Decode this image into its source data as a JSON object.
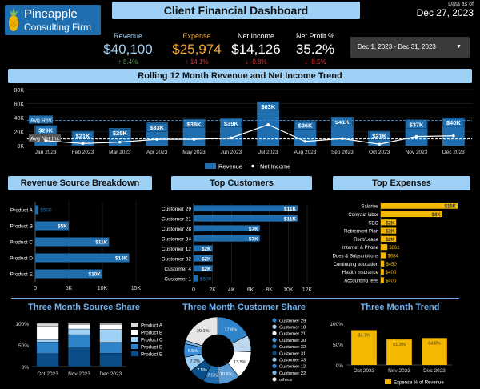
{
  "header": {
    "logo_line1": "Pineapple",
    "logo_line2": "Consulting Firm",
    "title": "Client Financial Dashboard",
    "as_of_label": "Data as of",
    "as_of_date": "Dec 27, 2023",
    "date_range": "Dec 1, 2023 - Dec 31, 2023",
    "dropdown_glyph": "▼"
  },
  "kpis": [
    {
      "label": "Revenue",
      "value": "$40,100",
      "change": "↑ 8.4%",
      "label_color": "#9fd0f5",
      "value_color": "#9fd0f5",
      "change_color": "#4caf50"
    },
    {
      "label": "Expense",
      "value": "$25,974",
      "change": "↑ 14.1%",
      "label_color": "#f5a623",
      "value_color": "#f5a623",
      "change_color": "#e53935"
    },
    {
      "label": "Net Income",
      "value": "$14,126",
      "change": "↓ -0.8%",
      "label_color": "#ffffff",
      "value_color": "#ffffff",
      "change_color": "#e53935"
    },
    {
      "label": "Net Profit %",
      "value": "35.2%",
      "change": "↓ -8.5%",
      "label_color": "#ffffff",
      "value_color": "#ffffff",
      "change_color": "#e53935"
    }
  ],
  "banners": {
    "rolling": "Rolling 12 Month Revenue and Net Income Trend",
    "revenue_source": "Revenue Source Breakdown",
    "top_customers": "Top Customers",
    "top_expenses": "Top Expenses",
    "three_month_source": "Three Month Source Share",
    "three_month_customer": "Three Month Customer Share",
    "three_month_trend": "Three Month Trend"
  },
  "colors": {
    "blue": "#1f6fb0",
    "light": "#9fd0f5",
    "orange": "#f5b800",
    "line": "#ffffff"
  },
  "chart_data": [
    {
      "id": "trend",
      "type": "bar",
      "title": "Rolling 12 Month Revenue and Net Income Trend",
      "categories": [
        "Jan 2023",
        "Feb 2023",
        "Mar 2023",
        "Apr 2023",
        "May 2023",
        "Jun 2023",
        "Jul 2023",
        "Aug 2023",
        "Sep 2023",
        "Oct 2023",
        "Nov 2023",
        "Dec 2023"
      ],
      "series": [
        {
          "name": "Revenue",
          "values": [
            29,
            21,
            25,
            33,
            38,
            39,
            63,
            36,
            41,
            21,
            37,
            40
          ],
          "labels": [
            "$29K",
            "$21K",
            "$25K",
            "$33K",
            "$38K",
            "$39K",
            "$63K",
            "$36K",
            "$41K",
            "$21K",
            "$37K",
            "$40K"
          ]
        },
        {
          "name": "Net Income",
          "values": [
            7,
            3,
            5,
            9,
            9,
            11,
            30,
            6,
            10,
            2,
            13,
            14
          ]
        }
      ],
      "ylim": [
        0,
        80
      ],
      "yticks": [
        "0K",
        "20K",
        "40K",
        "60K",
        "80K"
      ],
      "annotations": [
        {
          "text": "Avg Rev.",
          "value": 36
        },
        {
          "text": "Avg Net Inc.",
          "value": 9.6
        }
      ],
      "legend": [
        "Revenue",
        "Net Income"
      ]
    },
    {
      "id": "source",
      "type": "bar",
      "orientation": "horizontal",
      "categories": [
        "Product A",
        "Product B",
        "Product C",
        "Product D",
        "Product E"
      ],
      "values": [
        0.5,
        5,
        11,
        14,
        10
      ],
      "labels": [
        "$500",
        "$5K",
        "$11K",
        "$14K",
        "$10K"
      ],
      "xlim": [
        0,
        15
      ],
      "xticks": [
        "0",
        "5K",
        "10K",
        "15K"
      ]
    },
    {
      "id": "customers",
      "type": "bar",
      "orientation": "horizontal",
      "categories": [
        "Customer 29",
        "Customer 21",
        "Customer 28",
        "Customer 34",
        "Customer 12",
        "Customer 32",
        "Customer 4",
        "Customer 1"
      ],
      "values": [
        11,
        11,
        7,
        7,
        2,
        2,
        2,
        0.5
      ],
      "labels": [
        "$11K",
        "$11K",
        "$7K",
        "$7K",
        "$2K",
        "$2K",
        "$2K",
        "$500"
      ],
      "xlim": [
        0,
        12
      ],
      "xticks": [
        "0",
        "2K",
        "4K",
        "6K",
        "8K",
        "10K",
        "12K"
      ]
    },
    {
      "id": "expenses",
      "type": "bar",
      "orientation": "horizontal",
      "categories": [
        "Salaries",
        "Contract labor",
        "SEO",
        "Retirement Plan",
        "Rent/Lease",
        "Internet & Phone",
        "Dues & Subscriptions",
        "Continuing education",
        "Health Insurance",
        "Accounting fees"
      ],
      "values": [
        10,
        8,
        2,
        2,
        2,
        0.861,
        0.684,
        0.45,
        0.4,
        0.4
      ],
      "labels": [
        "$10K",
        "$8K",
        "$2K",
        "$2K",
        "$2K",
        "$861",
        "$684",
        "$450",
        "$400",
        "$400"
      ],
      "xlim": [
        0,
        10
      ]
    },
    {
      "id": "source_share",
      "type": "bar",
      "stacked": true,
      "categories": [
        "Oct 2023",
        "Nov 2023",
        "Dec 2023"
      ],
      "series": [
        {
          "name": "Product A",
          "values": [
            6,
            2,
            2
          ],
          "color": "#d9d9d9"
        },
        {
          "name": "Product B",
          "values": [
            32,
            11,
            12
          ],
          "color": "#ffffff"
        },
        {
          "name": "Product C",
          "values": [
            5,
            13,
            30
          ],
          "color": "#9fd0f5"
        },
        {
          "name": "Product D",
          "values": [
            27,
            31,
            25
          ],
          "color": "#2f83c8"
        },
        {
          "name": "Product E",
          "values": [
            30,
            43,
            31
          ],
          "color": "#0b4f8a"
        }
      ],
      "yticks": [
        "0%",
        "50%",
        "100%"
      ],
      "ylim": [
        0,
        100
      ]
    },
    {
      "id": "customer_share",
      "type": "pie",
      "donut": true,
      "slices": [
        {
          "name": "Customer 29",
          "value": 17.6,
          "color": "#2f83c8",
          "label": "17.6%"
        },
        {
          "name": "Customer 18",
          "value": 8,
          "color": "#bcd7ee",
          "label": ""
        },
        {
          "name": "Customer 21",
          "value": 13.5,
          "color": "#ffffff",
          "label": "13.5%"
        },
        {
          "name": "Customer 30",
          "value": 10.5,
          "color": "#5a9bd5",
          "label": "10.5%"
        },
        {
          "name": "Customer 32",
          "value": 7.5,
          "color": "#1f6fb0",
          "label": "7.5%"
        },
        {
          "name": "Customer 31",
          "value": 7.5,
          "color": "#0b4f8a",
          "label": "7.5%"
        },
        {
          "name": "Customer 33",
          "value": 7.2,
          "color": "#9fd0f5",
          "label": "7.2%"
        },
        {
          "name": "Customer 12",
          "value": 6.5,
          "color": "#3c8bd9",
          "label": "6.5%"
        },
        {
          "name": "Customer 22",
          "value": 1.6,
          "color": "#7fb6e6",
          "label": ""
        },
        {
          "name": "others",
          "value": 20.1,
          "color": "#e6e6e6",
          "label": "20.1%"
        }
      ]
    },
    {
      "id": "trend3",
      "type": "bar",
      "categories": [
        "Oct 2023",
        "Nov 2023",
        "Dec 2023"
      ],
      "values": [
        83.7,
        61.3,
        64.8
      ],
      "labels": [
        "83.7%",
        "61.3%",
        "64.8%"
      ],
      "ylim": [
        0,
        100
      ],
      "yticks": [
        "0%",
        "50%",
        "100%"
      ],
      "legend": "Expense % of Revenue"
    }
  ]
}
